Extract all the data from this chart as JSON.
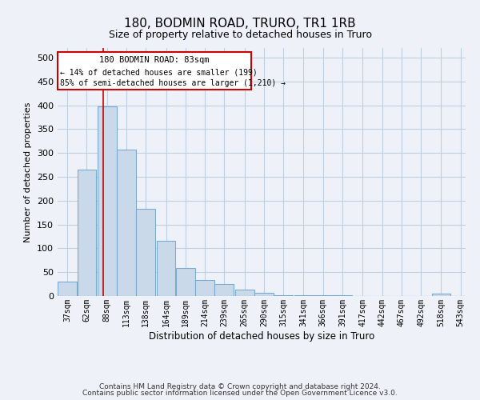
{
  "title": "180, BODMIN ROAD, TRURO, TR1 1RB",
  "subtitle": "Size of property relative to detached houses in Truro",
  "xlabel": "Distribution of detached houses by size in Truro",
  "ylabel": "Number of detached properties",
  "footer_line1": "Contains HM Land Registry data © Crown copyright and database right 2024.",
  "footer_line2": "Contains public sector information licensed under the Open Government Licence v3.0.",
  "bar_color": "#c9d9ea",
  "bar_edge_color": "#7aaacf",
  "grid_color": "#c0cfe0",
  "annotation_box_color": "#cc0000",
  "annotation_line_color": "#cc0000",
  "property_line_x": 83,
  "annotation_text_line1": "180 BODMIN ROAD: 83sqm",
  "annotation_text_line2": "← 14% of detached houses are smaller (199)",
  "annotation_text_line3": "85% of semi-detached houses are larger (1,210) →",
  "categories": [
    "37sqm",
    "62sqm",
    "88sqm",
    "113sqm",
    "138sqm",
    "164sqm",
    "189sqm",
    "214sqm",
    "239sqm",
    "265sqm",
    "290sqm",
    "315sqm",
    "341sqm",
    "366sqm",
    "391sqm",
    "417sqm",
    "442sqm",
    "467sqm",
    "492sqm",
    "518sqm",
    "543sqm"
  ],
  "bin_edges": [
    24.5,
    49.5,
    74.5,
    99.5,
    124.5,
    149.5,
    174.5,
    199.5,
    224.5,
    249.5,
    274.5,
    299.5,
    324.5,
    349.5,
    374.5,
    399.5,
    424.5,
    449.5,
    474.5,
    499.5,
    524.5,
    549.5
  ],
  "bin_centers": [
    37,
    62,
    88,
    113,
    138,
    164,
    189,
    214,
    239,
    265,
    290,
    315,
    341,
    366,
    391,
    417,
    442,
    467,
    492,
    518,
    543
  ],
  "values": [
    30,
    265,
    397,
    307,
    183,
    115,
    58,
    33,
    25,
    14,
    6,
    2,
    2,
    1,
    1,
    0,
    0,
    0,
    0,
    5,
    0
  ],
  "ylim": [
    0,
    520
  ],
  "yticks": [
    0,
    50,
    100,
    150,
    200,
    250,
    300,
    350,
    400,
    450,
    500
  ],
  "background_color": "#eef2f8"
}
